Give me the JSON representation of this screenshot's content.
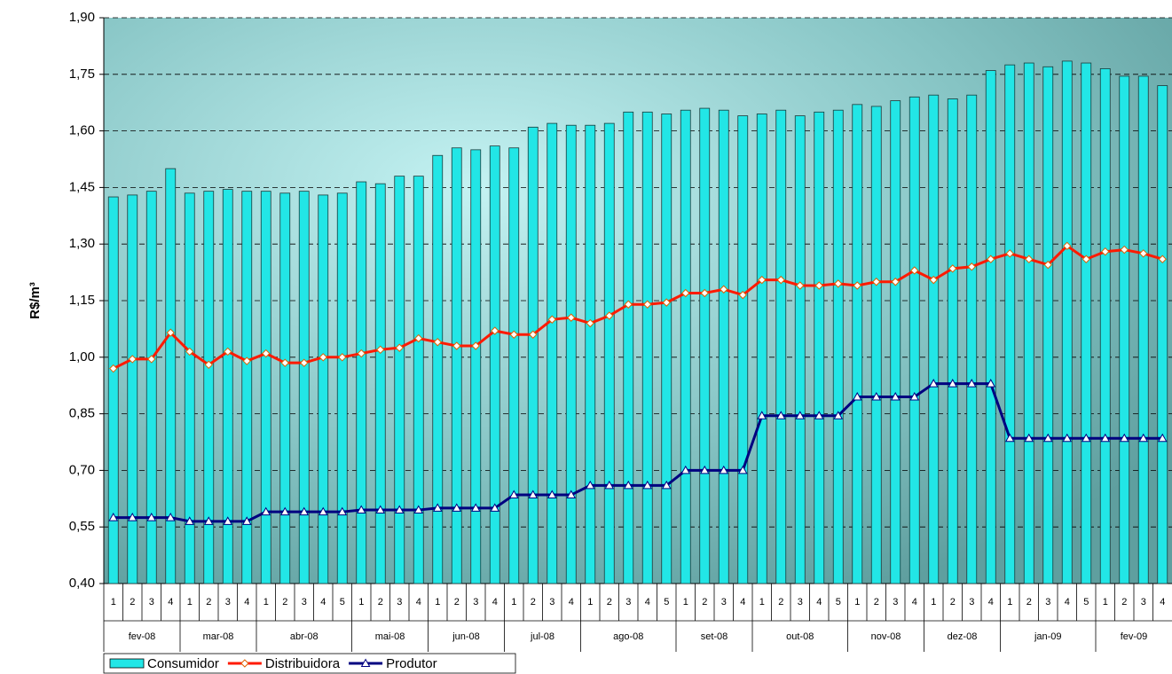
{
  "chart_data": {
    "type": "bar-line",
    "y_label": "R$/m³",
    "categories": [
      "1",
      "2",
      "3",
      "4",
      "1",
      "2",
      "3",
      "4",
      "1",
      "2",
      "3",
      "4",
      "5",
      "1",
      "2",
      "3",
      "4",
      "1",
      "2",
      "3",
      "4",
      "1",
      "2",
      "3",
      "4",
      "1",
      "2",
      "3",
      "4",
      "5",
      "1",
      "2",
      "3",
      "4",
      "1",
      "2",
      "3",
      "4",
      "5",
      "1",
      "2",
      "3",
      "4",
      "1",
      "2",
      "3",
      "4",
      "1",
      "2",
      "3",
      "4",
      "5",
      "1",
      "2",
      "3",
      "4"
    ],
    "category_months": [
      "fev-08",
      "fev-08",
      "fev-08",
      "fev-08",
      "mar-08",
      "mar-08",
      "mar-08",
      "mar-08",
      "abr-08",
      "abr-08",
      "abr-08",
      "abr-08",
      "abr-08",
      "mai-08",
      "mai-08",
      "mai-08",
      "mai-08",
      "jun-08",
      "jun-08",
      "jun-08",
      "jun-08",
      "jul-08",
      "jul-08",
      "jul-08",
      "jul-08",
      "ago-08",
      "ago-08",
      "ago-08",
      "ago-08",
      "ago-08",
      "set-08",
      "set-08",
      "set-08",
      "set-08",
      "out-08",
      "out-08",
      "out-08",
      "out-08",
      "out-08",
      "nov-08",
      "nov-08",
      "nov-08",
      "nov-08",
      "dez-08",
      "dez-08",
      "dez-08",
      "dez-08",
      "jan-09",
      "jan-09",
      "jan-09",
      "jan-09",
      "jan-09",
      "fev-09",
      "fev-09",
      "fev-09",
      "fev-09"
    ],
    "series": [
      {
        "name": "Consumidor",
        "type": "bar",
        "color": "#22e6e6",
        "values": [
          1.425,
          1.43,
          1.44,
          1.5,
          1.435,
          1.44,
          1.445,
          1.44,
          1.44,
          1.435,
          1.44,
          1.43,
          1.435,
          1.465,
          1.46,
          1.48,
          1.48,
          1.535,
          1.555,
          1.55,
          1.56,
          1.555,
          1.61,
          1.62,
          1.615,
          1.615,
          1.62,
          1.65,
          1.65,
          1.645,
          1.655,
          1.66,
          1.655,
          1.64,
          1.645,
          1.655,
          1.64,
          1.65,
          1.655,
          1.67,
          1.665,
          1.68,
          1.69,
          1.695,
          1.685,
          1.695,
          1.76,
          1.775,
          1.78,
          1.77,
          1.785,
          1.78,
          1.765,
          1.745,
          1.745,
          1.72
        ]
      },
      {
        "name": "Distribuidora",
        "type": "line",
        "color": "#ff1a00",
        "marker": "diamond",
        "values": [
          0.97,
          0.995,
          0.995,
          1.065,
          1.015,
          0.98,
          1.015,
          0.99,
          1.01,
          0.985,
          0.985,
          1.0,
          1.0,
          1.01,
          1.02,
          1.025,
          1.05,
          1.04,
          1.03,
          1.03,
          1.07,
          1.06,
          1.06,
          1.1,
          1.105,
          1.09,
          1.11,
          1.14,
          1.14,
          1.145,
          1.17,
          1.17,
          1.18,
          1.165,
          1.205,
          1.205,
          1.19,
          1.19,
          1.195,
          1.19,
          1.2,
          1.2,
          1.23,
          1.205,
          1.235,
          1.24,
          1.26,
          1.275,
          1.26,
          1.245,
          1.295,
          1.26,
          1.28,
          1.285,
          1.275,
          1.26
        ]
      },
      {
        "name": "Produtor",
        "type": "line",
        "color": "#000080",
        "marker": "triangle",
        "values": [
          0.575,
          0.575,
          0.575,
          0.575,
          0.565,
          0.565,
          0.565,
          0.565,
          0.59,
          0.59,
          0.59,
          0.59,
          0.59,
          0.595,
          0.595,
          0.595,
          0.595,
          0.6,
          0.6,
          0.6,
          0.6,
          0.635,
          0.635,
          0.635,
          0.635,
          0.66,
          0.66,
          0.66,
          0.66,
          0.66,
          0.7,
          0.7,
          0.7,
          0.7,
          0.845,
          0.845,
          0.845,
          0.845,
          0.845,
          0.895,
          0.895,
          0.895,
          0.895,
          0.93,
          0.93,
          0.93,
          0.93,
          0.785,
          0.785,
          0.785,
          0.785,
          0.785,
          0.785,
          0.785,
          0.785,
          0.785
        ]
      }
    ],
    "ylim": [
      0.4,
      1.9
    ],
    "yticks": [
      {
        "value": 0.4,
        "label": "0,40"
      },
      {
        "value": 0.55,
        "label": "0,55"
      },
      {
        "value": 0.7,
        "label": "0,70"
      },
      {
        "value": 0.85,
        "label": "0,85"
      },
      {
        "value": 1.0,
        "label": "1,00"
      },
      {
        "value": 1.15,
        "label": "1,15"
      },
      {
        "value": 1.3,
        "label": "1,30"
      },
      {
        "value": 1.45,
        "label": "1,45"
      },
      {
        "value": 1.6,
        "label": "1,60"
      },
      {
        "value": 1.75,
        "label": "1,75"
      },
      {
        "value": 1.9,
        "label": "1,90"
      }
    ],
    "grid": true
  }
}
